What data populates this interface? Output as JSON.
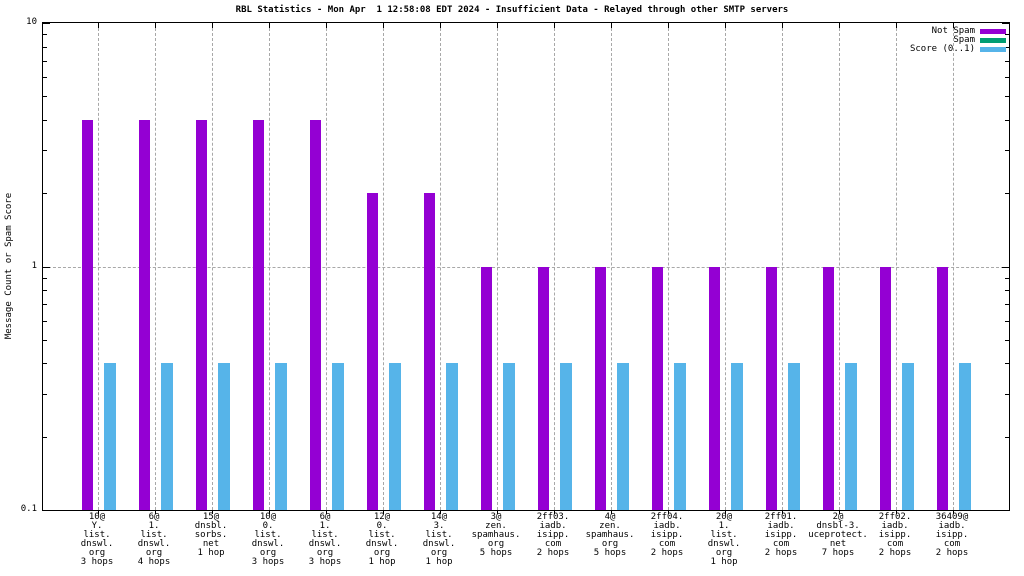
{
  "chart_data": {
    "type": "bar",
    "title": "RBL Statistics - Mon Apr  1 12:58:08 EDT 2024 - Insufficient Data - Relayed through other SMTP servers",
    "ylabel": "Message Count or Spam Score",
    "yscale": "log",
    "ylim": [
      0.1,
      10
    ],
    "yticks": [
      {
        "value": 10,
        "label": "10"
      },
      {
        "value": 1,
        "label": "1"
      },
      {
        "value": 0.1,
        "label": "0.1"
      }
    ],
    "grid": {
      "vertical": "dashed at each x tick",
      "horizontal_at": 1
    },
    "legend_position": "top-right-inside",
    "axis_color": "#000000",
    "grid_color": "#a8a8a8",
    "categories": [
      [
        "10@",
        "Y.",
        "list.",
        "dnswl.",
        "org",
        "3 hops"
      ],
      [
        "6@",
        "1.",
        "list.",
        "dnswl.",
        "org",
        "4 hops"
      ],
      [
        "15@",
        "dnsbl.",
        "sorbs.",
        "net",
        "1 hop"
      ],
      [
        "10@",
        "0.",
        "list.",
        "dnswl.",
        "org",
        "3 hops"
      ],
      [
        "6@",
        "1.",
        "list.",
        "dnswl.",
        "org",
        "3 hops"
      ],
      [
        "12@",
        "0.",
        "list.",
        "dnswl.",
        "org",
        "1 hop"
      ],
      [
        "14@",
        "3.",
        "list.",
        "dnswl.",
        "org",
        "1 hop"
      ],
      [
        "3@",
        "zen.",
        "spamhaus.",
        "org",
        "5 hops"
      ],
      [
        "2ff03.",
        "iadb.",
        "isipp.",
        "com",
        "2 hops"
      ],
      [
        "4@",
        "zen.",
        "spamhaus.",
        "org",
        "5 hops"
      ],
      [
        "2ff04.",
        "iadb.",
        "isipp.",
        "com",
        "2 hops"
      ],
      [
        "20@",
        "1.",
        "list.",
        "dnswl.",
        "org",
        "1 hop"
      ],
      [
        "2ff01.",
        "iadb.",
        "isipp.",
        "com",
        "2 hops"
      ],
      [
        "2@",
        "dnsbl-3.",
        "uceprotect.",
        "net",
        "7 hops"
      ],
      [
        "2ff02.",
        "iadb.",
        "isipp.",
        "com",
        "2 hops"
      ],
      [
        "36409@",
        "iadb.",
        "isipp.",
        "com",
        "2 hops"
      ]
    ],
    "series": [
      {
        "name": "Not Spam",
        "color": "#9400d3",
        "values": [
          4,
          4,
          4,
          4,
          4,
          2,
          2,
          1,
          1,
          1,
          1,
          1,
          1,
          1,
          1,
          1
        ]
      },
      {
        "name": "Spam",
        "color": "#009e73",
        "values": [
          0,
          0,
          0,
          0,
          0,
          0,
          0,
          0,
          0,
          0,
          0,
          0,
          0,
          0,
          0,
          0
        ]
      },
      {
        "name": "Score (0..1)",
        "color": "#56b4e9",
        "values": [
          0.4,
          0.4,
          0.4,
          0.4,
          0.4,
          0.4,
          0.4,
          0.4,
          0.4,
          0.4,
          0.4,
          0.4,
          0.4,
          0.4,
          0.4,
          0.4
        ]
      }
    ]
  }
}
